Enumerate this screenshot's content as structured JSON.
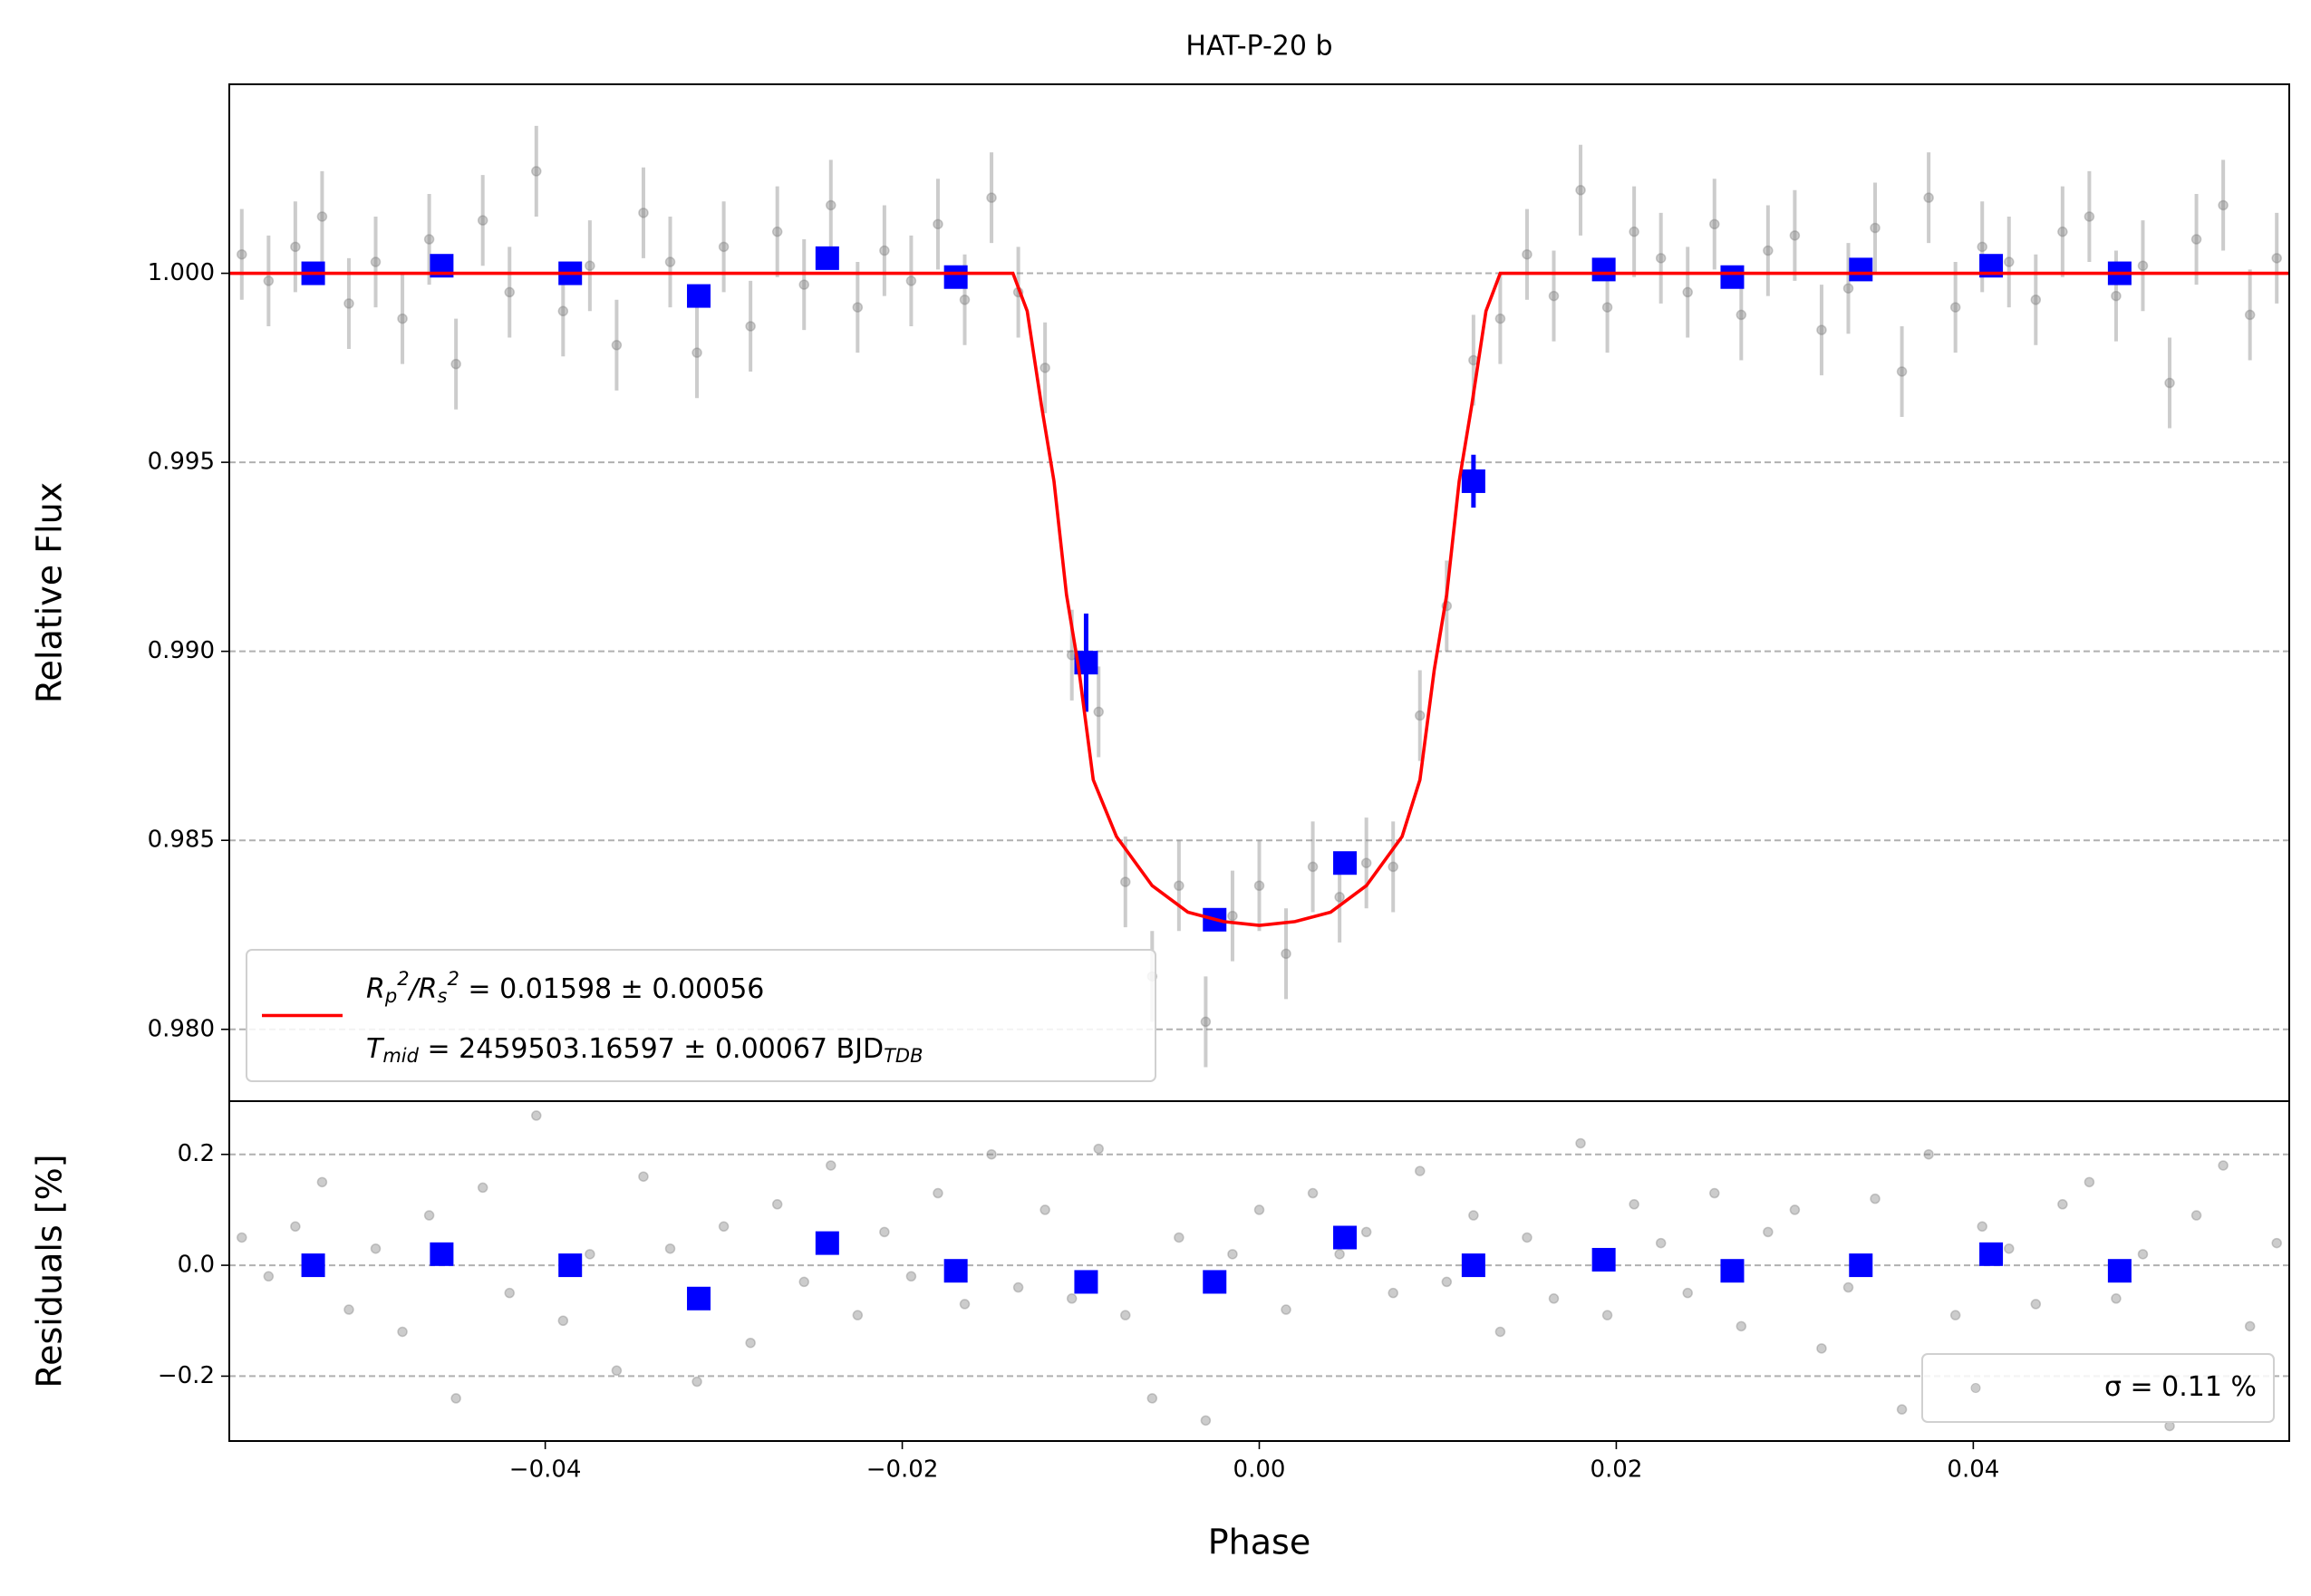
{
  "chart_data": [
    {
      "type": "scatter",
      "title": "HAT-P-20 b",
      "ylabel": "Relative Flux",
      "xlim": [
        -0.0577,
        0.0577
      ],
      "ylim": [
        0.9781,
        1.005
      ],
      "yticks": [
        {
          "value": 0.98,
          "label": "0.980"
        },
        {
          "value": 0.985,
          "label": "0.985"
        },
        {
          "value": 0.99,
          "label": "0.990"
        },
        {
          "value": 0.995,
          "label": "0.995"
        },
        {
          "value": 1.0,
          "label": "1.000"
        }
      ],
      "grid": "y",
      "legend": "lower left",
      "series": [
        {
          "mode": "points",
          "marker": "circle",
          "color": "#808080",
          "alpha": 0.4,
          "error": 0.0012,
          "x": [
            -0.057,
            -0.0555,
            -0.054,
            -0.0525,
            -0.051,
            -0.0495,
            -0.048,
            -0.0465,
            -0.045,
            -0.0435,
            -0.042,
            -0.0405,
            -0.039,
            -0.0375,
            -0.036,
            -0.0345,
            -0.033,
            -0.0315,
            -0.03,
            -0.0285,
            -0.027,
            -0.0255,
            -0.024,
            -0.0225,
            -0.021,
            -0.0195,
            -0.018,
            -0.0165,
            -0.015,
            -0.0135,
            -0.012,
            -0.0105,
            -0.009,
            -0.0075,
            -0.006,
            -0.0045,
            -0.003,
            -0.0015,
            0.0,
            0.0015,
            0.003,
            0.0045,
            0.006,
            0.0075,
            0.009,
            0.0105,
            0.012,
            0.0135,
            0.015,
            0.0165,
            0.018,
            0.0195,
            0.021,
            0.0225,
            0.024,
            0.0255,
            0.027,
            0.0285,
            0.03,
            0.0315,
            0.033,
            0.0345,
            0.036,
            0.0375,
            0.039,
            0.0405,
            0.042,
            0.0435,
            0.045,
            0.0465,
            0.048,
            0.0495,
            0.051,
            0.0525,
            0.054,
            0.0555,
            0.057
          ],
          "values": [
            1.0005,
            0.9998,
            1.0007,
            1.0015,
            0.9992,
            1.0003,
            0.9988,
            1.0009,
            0.9976,
            1.0014,
            0.9995,
            1.0027,
            0.999,
            1.0002,
            0.9981,
            1.0016,
            1.0003,
            0.9979,
            1.0007,
            0.9986,
            1.0011,
            0.9997,
            1.0018,
            0.9991,
            1.0006,
            0.9998,
            1.0013,
            0.9993,
            1.002,
            0.9995,
            0.9975,
            0.9899,
            0.9884,
            0.9839,
            0.9814,
            0.9838,
            0.9802,
            0.983,
            0.9838,
            0.982,
            0.9843,
            0.9835,
            0.9844,
            0.9843,
            0.9883,
            0.9912,
            0.9977,
            0.9988,
            1.0005,
            0.9994,
            1.0022,
            0.9991,
            1.0011,
            1.0004,
            0.9995,
            1.0013,
            0.9989,
            1.0006,
            1.001,
            0.9985,
            0.9996,
            1.0012,
            0.9974,
            1.002,
            0.9991,
            1.0007,
            1.0003,
            0.9993,
            1.0011,
            1.0015,
            0.9994,
            1.0002,
            0.9971,
            1.0009,
            1.0018,
            0.9989,
            1.0004
          ]
        },
        {
          "mode": "points",
          "marker": "square",
          "color": "#0000ff",
          "alpha": 1,
          "x": [
            -0.053,
            -0.0458,
            -0.0386,
            -0.0314,
            -0.0242,
            -0.017,
            -0.0097,
            -0.0025,
            0.0048,
            0.012,
            0.0193,
            0.0265,
            0.0337,
            0.041,
            0.0482
          ],
          "values": [
            1.0,
            1.0002,
            1.0,
            0.9994,
            1.0004,
            0.9999,
            0.9897,
            0.9829,
            0.9844,
            0.9945,
            1.0001,
            0.9999,
            1.0001,
            1.0002,
            1.0
          ],
          "errors": [
            0.0003,
            0.0003,
            0.0003,
            0.0003,
            0.0003,
            0.0003,
            0.0013,
            0.0003,
            0.0003,
            0.0007,
            0.0003,
            0.0003,
            0.0003,
            0.0003,
            0.0003
          ]
        },
        {
          "mode": "line",
          "color": "#ff0000",
          "label_lines": [
            [
              {
                "text": "R"
              },
              {
                "text": "p",
                "shift": "sub"
              },
              {
                "text": "2",
                "shift": "sup"
              },
              {
                "text": "/R"
              },
              {
                "text": "s",
                "shift": "sub"
              },
              {
                "text": "2",
                "shift": "sup"
              },
              {
                "text": " = 0.01598 ± 0.00056"
              }
            ],
            [
              {
                "text": "T"
              },
              {
                "text": "mid",
                "shift": "sub"
              },
              {
                "text": " = 2459503.16597 ± 0.00067 BJD"
              },
              {
                "text": "TDB",
                "shift": "sub"
              }
            ]
          ],
          "x": [
            -0.0577,
            -0.0138,
            -0.013,
            -0.0122,
            -0.0115,
            -0.0108,
            -0.0101,
            -0.0093,
            -0.008,
            -0.006,
            -0.004,
            -0.002,
            0.0,
            0.002,
            0.004,
            0.006,
            0.008,
            0.009,
            0.0098,
            0.0105,
            0.0112,
            0.0119,
            0.0127,
            0.0135,
            0.0577
          ],
          "values": [
            1.0,
            1.0,
            0.999,
            0.9965,
            0.9945,
            0.9915,
            0.9895,
            0.9866,
            0.9851,
            0.9838,
            0.9831,
            0.98285,
            0.98275,
            0.98285,
            0.9831,
            0.9838,
            0.9851,
            0.9866,
            0.9895,
            0.9915,
            0.9945,
            0.9965,
            0.999,
            1.0,
            1.0
          ]
        }
      ]
    },
    {
      "type": "scatter",
      "ylabel": "Residuals [%]",
      "xlabel": "Phase",
      "xlim": [
        -0.0577,
        0.0577
      ],
      "ylim": [
        -0.317,
        0.296
      ],
      "xticks": [
        {
          "value": -0.04,
          "label": "−0.04"
        },
        {
          "value": -0.02,
          "label": "−0.02"
        },
        {
          "value": 0,
          "label": "0.00"
        },
        {
          "value": 0.02,
          "label": "0.02"
        },
        {
          "value": 0.04,
          "label": "0.04"
        }
      ],
      "yticks": [
        {
          "value": -0.2,
          "label": "−0.2"
        },
        {
          "value": 0,
          "label": "0.0"
        },
        {
          "value": 0.2,
          "label": "0.2"
        }
      ],
      "grid": "y",
      "legend": "lower right",
      "series": [
        {
          "name": "σ = 0.11 %",
          "mode": "points",
          "marker": "circle",
          "color": "#808080",
          "alpha": 0.4,
          "x": [
            -0.057,
            -0.0555,
            -0.054,
            -0.0525,
            -0.051,
            -0.0495,
            -0.048,
            -0.0465,
            -0.045,
            -0.0435,
            -0.042,
            -0.0405,
            -0.039,
            -0.0375,
            -0.036,
            -0.0345,
            -0.033,
            -0.0315,
            -0.03,
            -0.0285,
            -0.027,
            -0.0255,
            -0.024,
            -0.0225,
            -0.021,
            -0.0195,
            -0.018,
            -0.0165,
            -0.015,
            -0.0135,
            -0.012,
            -0.0105,
            -0.009,
            -0.0075,
            -0.006,
            -0.0045,
            -0.003,
            -0.0015,
            0.0,
            0.0015,
            0.003,
            0.0045,
            0.006,
            0.0075,
            0.009,
            0.0105,
            0.012,
            0.0135,
            0.015,
            0.0165,
            0.018,
            0.0195,
            0.021,
            0.0225,
            0.024,
            0.0255,
            0.027,
            0.0285,
            0.03,
            0.0315,
            0.033,
            0.0345,
            0.036,
            0.0375,
            0.039,
            0.0405,
            0.042,
            0.0435,
            0.045,
            0.0465,
            0.048,
            0.0495,
            0.051,
            0.0525,
            0.054,
            0.0555,
            0.057
          ],
          "values": [
            0.05,
            -0.02,
            0.07,
            0.15,
            -0.08,
            0.03,
            -0.12,
            0.09,
            -0.24,
            0.14,
            -0.05,
            0.27,
            -0.1,
            0.02,
            -0.19,
            0.16,
            0.03,
            -0.21,
            0.07,
            -0.14,
            0.11,
            -0.03,
            0.18,
            -0.09,
            0.06,
            -0.02,
            0.13,
            -0.07,
            0.2,
            -0.04,
            0.1,
            -0.06,
            0.21,
            -0.09,
            -0.24,
            0.05,
            -0.28,
            0.02,
            0.1,
            -0.08,
            0.13,
            0.02,
            0.06,
            -0.05,
            0.17,
            -0.03,
            0.09,
            -0.12,
            0.05,
            -0.06,
            0.22,
            -0.09,
            0.11,
            0.04,
            -0.05,
            0.13,
            -0.11,
            0.06,
            0.1,
            -0.15,
            -0.04,
            0.12,
            -0.26,
            0.2,
            -0.09,
            0.07,
            0.03,
            -0.07,
            0.11,
            0.15,
            -0.06,
            0.02,
            -0.29,
            0.09,
            0.18,
            -0.11,
            0.04
          ]
        },
        {
          "mode": "points",
          "marker": "square",
          "color": "#0000ff",
          "alpha": 1,
          "x": [
            -0.053,
            -0.0458,
            -0.0386,
            -0.0314,
            -0.0242,
            -0.017,
            -0.0097,
            -0.0025,
            0.0048,
            0.012,
            0.0193,
            0.0265,
            0.0337,
            0.041,
            0.0482
          ],
          "values": [
            0.0,
            0.02,
            0.0,
            -0.06,
            0.04,
            -0.01,
            -0.03,
            -0.03,
            0.05,
            0.0,
            0.01,
            -0.01,
            0.0,
            0.02,
            -0.01
          ]
        }
      ]
    }
  ]
}
